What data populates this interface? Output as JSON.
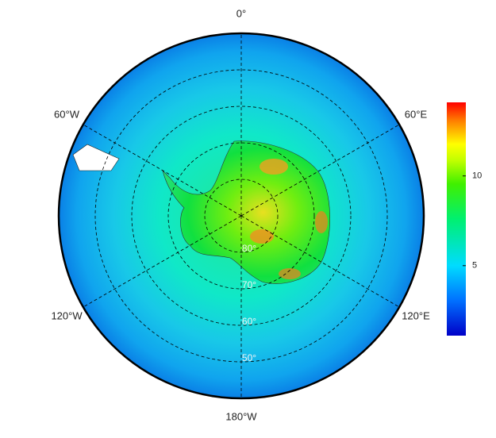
{
  "map": {
    "radial_lim": [
      90,
      40
    ],
    "meridians": [
      {
        "value": 0,
        "label": "0°"
      },
      {
        "value": 60,
        "label": "60°E"
      },
      {
        "value": 120,
        "label": "120°E"
      },
      {
        "value": 180,
        "label": "180°W"
      },
      {
        "value": -120,
        "label": "120°W"
      },
      {
        "value": -60,
        "label": "60°W"
      }
    ],
    "parallels": [
      {
        "value": 80,
        "label": "80°"
      },
      {
        "value": 70,
        "label": "70°"
      },
      {
        "value": 60,
        "label": "60°"
      },
      {
        "value": 50,
        "label": "50°"
      }
    ],
    "colorbar": {
      "lim": [
        1.1,
        14.1
      ],
      "ticks": [
        5,
        10
      ]
    }
  }
}
